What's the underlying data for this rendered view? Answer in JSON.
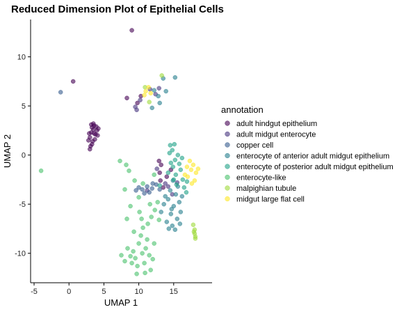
{
  "chart_data": {
    "type": "scatter",
    "title": "Reduced Dimension Plot of Epithelial Cells",
    "xlabel": "UMAP 1",
    "ylabel": "UMAP 2",
    "xlim": [
      -5.5,
      20.5
    ],
    "ylim": [
      -13,
      13.8
    ],
    "x_ticks": [
      -5,
      0,
      5,
      10,
      15
    ],
    "y_ticks": [
      -10,
      -5,
      0,
      5,
      10
    ],
    "grid": false,
    "point_opacity": 0.6,
    "legend": {
      "title": "annotation",
      "placement": "right"
    },
    "series": [
      {
        "name": "adult hindgut epithelium",
        "color": "#440154",
        "points": [
          [
            3.2,
            2.3
          ],
          [
            3.5,
            2.6
          ],
          [
            3.8,
            2.1
          ],
          [
            3.0,
            1.8
          ],
          [
            3.6,
            3.0
          ],
          [
            3.3,
            2.8
          ],
          [
            4.0,
            2.5
          ],
          [
            3.7,
            1.6
          ],
          [
            2.9,
            2.2
          ],
          [
            3.4,
            1.4
          ],
          [
            3.1,
            0.9
          ],
          [
            4.1,
            2.0
          ],
          [
            3.9,
            2.9
          ],
          [
            3.5,
            3.2
          ],
          [
            2.8,
            1.5
          ],
          [
            3.0,
            0.6
          ],
          [
            3.3,
            1.1
          ],
          [
            3.6,
            2.2
          ],
          [
            3.2,
            3.1
          ],
          [
            4.2,
            2.7
          ],
          [
            9.0,
            12.7
          ],
          [
            0.6,
            7.5
          ],
          [
            10.3,
            6.0
          ],
          [
            9.8,
            5.3
          ],
          [
            8.3,
            5.8
          ],
          [
            13.0,
            -1.8
          ],
          [
            14.0,
            -2.2
          ],
          [
            13.2,
            -1.0
          ],
          [
            12.9,
            -0.6
          ],
          [
            13.5,
            -3.3
          ],
          [
            14.6,
            -1.5
          ],
          [
            13.1,
            -2.6
          ]
        ]
      },
      {
        "name": "adult midgut enterocyte",
        "color": "#46337E",
        "points": [
          [
            9.7,
            4.6
          ],
          [
            10.2,
            5.6
          ],
          [
            11.6,
            6.7
          ],
          [
            12.4,
            6.2
          ],
          [
            12.9,
            6.8
          ],
          [
            9.5,
            4.9
          ],
          [
            14.2,
            -3.2
          ],
          [
            13.8,
            -2.9
          ],
          [
            12.6,
            -1.4
          ],
          [
            14.8,
            -4.0
          ],
          [
            11.2,
            -3.6
          ],
          [
            15.5,
            -2.8
          ]
        ]
      },
      {
        "name": "copper cell",
        "color": "#365C8D",
        "points": [
          [
            -1.2,
            6.4
          ],
          [
            11.2,
            -3.2
          ],
          [
            10.5,
            -3.5
          ],
          [
            11.9,
            -3.4
          ],
          [
            12.5,
            -3.0
          ],
          [
            10.0,
            -3.3
          ],
          [
            11.5,
            -3.8
          ],
          [
            13.0,
            -3.5
          ],
          [
            9.6,
            -3.6
          ],
          [
            12.0,
            -2.9
          ],
          [
            10.8,
            -3.9
          ]
        ]
      },
      {
        "name": "enterocyte of anterior adult midgut epithelium",
        "color": "#277F8E",
        "points": [
          [
            14.6,
            -6.0
          ],
          [
            15.0,
            -5.2
          ],
          [
            14.2,
            -4.5
          ],
          [
            15.5,
            -6.5
          ],
          [
            14.8,
            -7.2
          ],
          [
            13.6,
            -5.0
          ],
          [
            15.8,
            -4.8
          ],
          [
            14.0,
            -6.8
          ],
          [
            15.2,
            -7.6
          ],
          [
            13.8,
            -4.2
          ],
          [
            16.0,
            -5.8
          ],
          [
            14.5,
            -3.6
          ],
          [
            15.6,
            -3.2
          ],
          [
            14.9,
            -2.6
          ],
          [
            13.2,
            -5.8
          ],
          [
            16.2,
            -4.2
          ],
          [
            14.3,
            -7.5
          ],
          [
            15.9,
            -7.0
          ],
          [
            14.7,
            -5.5
          ],
          [
            15.3,
            -4.0
          ],
          [
            12.8,
            6.0
          ],
          [
            13.5,
            7.8
          ],
          [
            11.9,
            4.8
          ],
          [
            13.0,
            5.3
          ],
          [
            15.2,
            7.9
          ],
          [
            12.2,
            6.6
          ],
          [
            13.9,
            6.5
          ]
        ]
      },
      {
        "name": "enterocyte of posterior adult midgut epithelium",
        "color": "#1FA187",
        "points": [
          [
            14.8,
            0.5
          ],
          [
            15.2,
            -0.5
          ],
          [
            14.5,
            1.0
          ],
          [
            15.6,
            0.0
          ],
          [
            14.9,
            -1.2
          ],
          [
            16.0,
            -1.5
          ],
          [
            15.3,
            -2.0
          ],
          [
            14.6,
            -0.8
          ],
          [
            16.3,
            -2.5
          ],
          [
            15.8,
            -0.9
          ],
          [
            14.4,
            0.2
          ],
          [
            15.1,
            1.1
          ],
          [
            16.5,
            -3.3
          ],
          [
            15.4,
            -3.0
          ],
          [
            16.8,
            -3.8
          ],
          [
            16.2,
            -0.3
          ],
          [
            13.0,
            -3.1
          ],
          [
            15.0,
            -2.5
          ],
          [
            14.2,
            -1.8
          ],
          [
            16.9,
            -2.7
          ]
        ]
      },
      {
        "name": "enterocyte-like",
        "color": "#4AC16D",
        "points": [
          [
            10.5,
            -10.0
          ],
          [
            10.0,
            -9.0
          ],
          [
            11.0,
            -9.5
          ],
          [
            9.5,
            -10.5
          ],
          [
            10.8,
            -11.0
          ],
          [
            11.5,
            -10.2
          ],
          [
            9.8,
            -11.3
          ],
          [
            10.3,
            -8.2
          ],
          [
            11.2,
            -8.6
          ],
          [
            9.2,
            -9.8
          ],
          [
            12.0,
            -10.6
          ],
          [
            9.0,
            -11.0
          ],
          [
            10.6,
            -7.4
          ],
          [
            11.3,
            -7.0
          ],
          [
            11.8,
            -6.3
          ],
          [
            12.3,
            -5.6
          ],
          [
            10.4,
            -6.5
          ],
          [
            11.6,
            -5.0
          ],
          [
            12.7,
            -4.8
          ],
          [
            8.8,
            -10.3
          ],
          [
            8.0,
            -10.8
          ],
          [
            7.5,
            -10.2
          ],
          [
            8.4,
            -9.5
          ],
          [
            10.9,
            -12.0
          ],
          [
            9.7,
            -12.1
          ],
          [
            11.7,
            -11.7
          ],
          [
            12.2,
            -9.0
          ],
          [
            9.3,
            -7.8
          ],
          [
            10.1,
            -5.8
          ],
          [
            12.9,
            -6.6
          ],
          [
            -4.0,
            -1.6
          ],
          [
            7.3,
            -0.6
          ],
          [
            8.2,
            -1.0
          ],
          [
            8.6,
            -1.6
          ],
          [
            9.4,
            -2.6
          ],
          [
            10.6,
            -2.9
          ],
          [
            12.2,
            -2.0
          ],
          [
            8.0,
            -3.5
          ],
          [
            10.0,
            -4.3
          ],
          [
            8.3,
            -6.5
          ],
          [
            8.8,
            -5.2
          ]
        ]
      },
      {
        "name": "malpighian tubule",
        "color": "#9FDA3A",
        "points": [
          [
            18.0,
            -7.6
          ],
          [
            18.0,
            -8.0
          ],
          [
            18.1,
            -8.3
          ],
          [
            17.9,
            -7.8
          ],
          [
            18.1,
            -8.5
          ],
          [
            17.8,
            -7.1
          ],
          [
            13.3,
            8.1
          ],
          [
            10.9,
            6.9
          ],
          [
            11.5,
            5.4
          ]
        ]
      },
      {
        "name": "midgut large flat cell",
        "color": "#FDE725",
        "points": [
          [
            17.5,
            -1.5
          ],
          [
            17.8,
            -1.0
          ],
          [
            18.2,
            -1.8
          ],
          [
            17.0,
            -2.2
          ],
          [
            18.0,
            -2.6
          ],
          [
            17.3,
            -0.6
          ],
          [
            16.9,
            -1.2
          ],
          [
            18.5,
            -1.4
          ],
          [
            17.6,
            -2.9
          ],
          [
            16.6,
            -2.0
          ],
          [
            11.0,
            6.5
          ],
          [
            11.4,
            6.9
          ],
          [
            10.8,
            6.1
          ],
          [
            11.7,
            6.3
          ]
        ]
      }
    ]
  }
}
